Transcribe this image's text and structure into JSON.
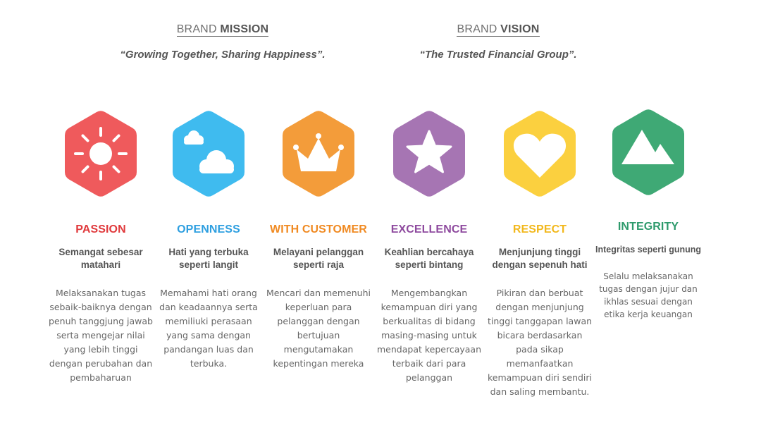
{
  "mission": {
    "heading_light": "BRAND ",
    "heading_bold": "MISSION",
    "quote": "“Growing Together, Sharing Happiness”."
  },
  "vision": {
    "heading_light": "BRAND ",
    "heading_bold": "VISION",
    "quote": "“The Trusted Financial Group”."
  },
  "values": [
    {
      "title": "PASSION",
      "color": "#e0393c",
      "hex_color": "#ef5a5c",
      "icon": "sun-icon",
      "subtitle": "Semangat sebesar matahari",
      "description": "Melaksanakan tugas sebaik-baiknya dengan penuh tanggjung jawab serta mengejar nilai yang lebih tinggi dengan perubahan dan pembaharuan"
    },
    {
      "title": "OPENNESS",
      "color": "#2e9fe0",
      "hex_color": "#3fbbef",
      "icon": "cloud-icon",
      "subtitle": "Hati yang terbuka seperti langit",
      "description": "Memahami hati orang dan keadaannya serta memiliuki perasaan yang sama dengan pandangan luas dan terbuka."
    },
    {
      "title": "WITH CUSTOMER",
      "color": "#f08a22",
      "hex_color": "#f39c3a",
      "icon": "crown-icon",
      "subtitle": "Melayani pelanggan seperti raja",
      "description": "Mencari dan memenuhi keperluan para pelanggan dengan bertujuan mengutamakan kepentingan mereka"
    },
    {
      "title": "EXCELLENCE",
      "color": "#8e4a9e",
      "hex_color": "#a675b3",
      "icon": "star-icon",
      "subtitle": "Keahlian bercahaya seperti bintang",
      "description": "Mengembangkan kemampuan diri yang berkualitas di bidang masing-masing untuk mendapat kepercayaan terbaik dari para pelanggan"
    },
    {
      "title": "RESPECT",
      "color": "#f2b81c",
      "hex_color": "#fbd03f",
      "icon": "heart-icon",
      "subtitle": "Menjunjung tinggi dengan sepenuh hati",
      "description": "Pikiran dan berbuat dengan menjunjung tinggi tanggapan lawan bicara berdasarkan pada sikap memanfaatkan kemampuan diri sendiri dan saling membantu."
    },
    {
      "title": "INTEGRITY",
      "color": "#2e9a6c",
      "hex_color": "#3fa975",
      "icon": "mountain-icon",
      "subtitle": "Integritas seperti gunung",
      "description": "Selalu melaksanakan tugas dengan jujur dan ikhlas sesuai dengan etika kerja keuangan"
    }
  ]
}
